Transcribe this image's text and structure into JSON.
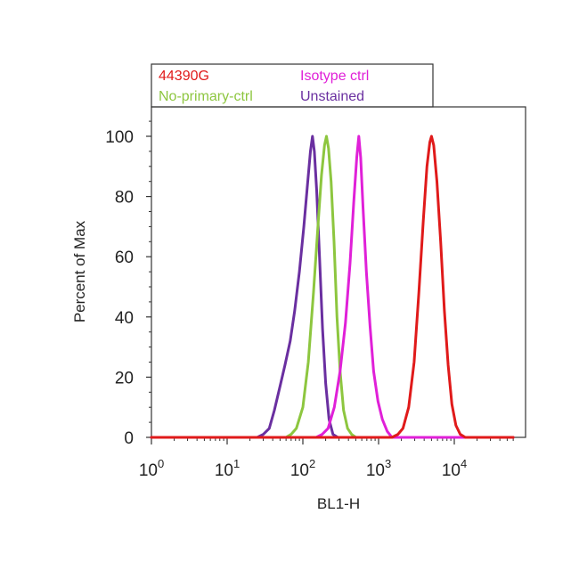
{
  "chart_data": {
    "type": "line",
    "title": "",
    "xlabel": "BL1-H",
    "ylabel": "Percent of Max",
    "x_scale": "log",
    "xlim": [
      1,
      60000
    ],
    "ylim": [
      0,
      110
    ],
    "grid": false,
    "legend_position": "top",
    "x_ticks": [
      {
        "value": 1,
        "base": "10",
        "exp": "0"
      },
      {
        "value": 10,
        "base": "10",
        "exp": "1"
      },
      {
        "value": 100,
        "base": "10",
        "exp": "2"
      },
      {
        "value": 1000,
        "base": "10",
        "exp": "3"
      },
      {
        "value": 10000,
        "base": "10",
        "exp": "4"
      }
    ],
    "y_ticks": [
      0,
      20,
      40,
      60,
      80,
      100
    ],
    "series": [
      {
        "name": "Unstained",
        "color": "#6a2fa0",
        "points": [
          [
            1,
            0
          ],
          [
            25,
            0
          ],
          [
            30,
            1
          ],
          [
            36,
            3
          ],
          [
            42,
            9
          ],
          [
            50,
            17
          ],
          [
            58,
            24
          ],
          [
            68,
            32
          ],
          [
            78,
            42
          ],
          [
            90,
            55
          ],
          [
            103,
            70
          ],
          [
            115,
            84
          ],
          [
            126,
            95
          ],
          [
            134,
            100
          ],
          [
            142,
            95
          ],
          [
            152,
            82
          ],
          [
            166,
            60
          ],
          [
            182,
            36
          ],
          [
            200,
            18
          ],
          [
            222,
            6
          ],
          [
            250,
            1
          ],
          [
            290,
            0
          ],
          [
            60000,
            0
          ]
        ]
      },
      {
        "name": "No-primary-ctrl",
        "color": "#8dc63f",
        "points": [
          [
            1,
            0
          ],
          [
            60,
            0
          ],
          [
            70,
            1
          ],
          [
            82,
            3
          ],
          [
            100,
            10
          ],
          [
            118,
            25
          ],
          [
            138,
            48
          ],
          [
            158,
            70
          ],
          [
            176,
            87
          ],
          [
            193,
            97
          ],
          [
            205,
            100
          ],
          [
            218,
            96
          ],
          [
            236,
            85
          ],
          [
            258,
            65
          ],
          [
            282,
            40
          ],
          [
            310,
            22
          ],
          [
            345,
            9
          ],
          [
            390,
            3
          ],
          [
            440,
            1
          ],
          [
            500,
            0
          ],
          [
            60000,
            0
          ]
        ]
      },
      {
        "name": "Isotype ctrl",
        "color": "#e020d8",
        "points": [
          [
            1,
            0
          ],
          [
            150,
            0
          ],
          [
            180,
            1
          ],
          [
            215,
            3
          ],
          [
            260,
            10
          ],
          [
            310,
            22
          ],
          [
            365,
            38
          ],
          [
            420,
            58
          ],
          [
            470,
            78
          ],
          [
            515,
            93
          ],
          [
            548,
            100
          ],
          [
            580,
            93
          ],
          [
            625,
            76
          ],
          [
            690,
            55
          ],
          [
            770,
            37
          ],
          [
            860,
            22
          ],
          [
            980,
            12
          ],
          [
            1120,
            6
          ],
          [
            1300,
            2
          ],
          [
            1500,
            0
          ],
          [
            60000,
            0
          ]
        ]
      },
      {
        "name": "44390G",
        "color": "#e01a1a",
        "points": [
          [
            1,
            0
          ],
          [
            1500,
            0
          ],
          [
            1800,
            1
          ],
          [
            2100,
            3
          ],
          [
            2500,
            10
          ],
          [
            2950,
            25
          ],
          [
            3400,
            48
          ],
          [
            3900,
            72
          ],
          [
            4350,
            90
          ],
          [
            4750,
            98
          ],
          [
            5000,
            100
          ],
          [
            5350,
            97
          ],
          [
            5900,
            85
          ],
          [
            6600,
            65
          ],
          [
            7400,
            42
          ],
          [
            8300,
            24
          ],
          [
            9300,
            11
          ],
          [
            10500,
            4
          ],
          [
            12000,
            1
          ],
          [
            14000,
            0
          ],
          [
            60000,
            0
          ]
        ]
      }
    ],
    "legend": [
      {
        "label": "44390G",
        "color": "#e01a1a"
      },
      {
        "label": "Isotype ctrl",
        "color": "#e020d8"
      },
      {
        "label": "No-primary-ctrl",
        "color": "#8dc63f"
      },
      {
        "label": "Unstained",
        "color": "#6a2fa0"
      }
    ]
  }
}
